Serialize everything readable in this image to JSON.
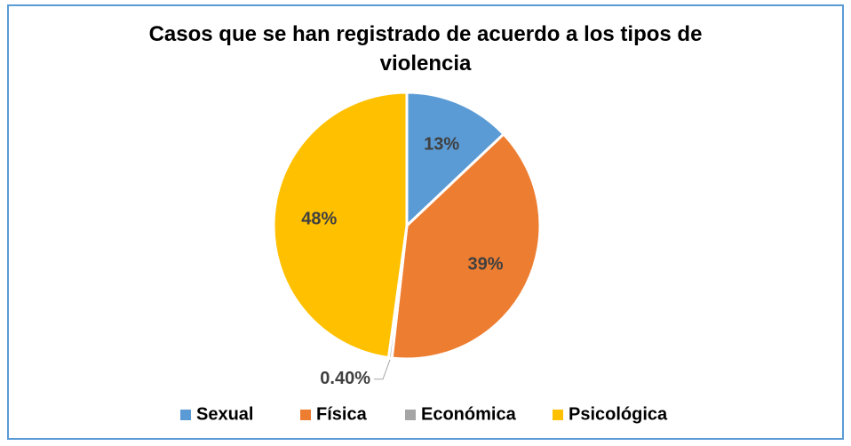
{
  "chart_data": {
    "type": "pie",
    "title": "Casos que se han registrado de acuerdo a los tipos de violencia",
    "categories": [
      "Sexual",
      "Física",
      "Económica",
      "Psicológica"
    ],
    "values": [
      13,
      39,
      0.4,
      48
    ],
    "value_labels": [
      "13%",
      "39%",
      "0.40%",
      "48%"
    ],
    "colors": [
      "#5b9bd5",
      "#ed7d31",
      "#a5a5a5",
      "#ffc000"
    ],
    "legend": "bottom"
  }
}
